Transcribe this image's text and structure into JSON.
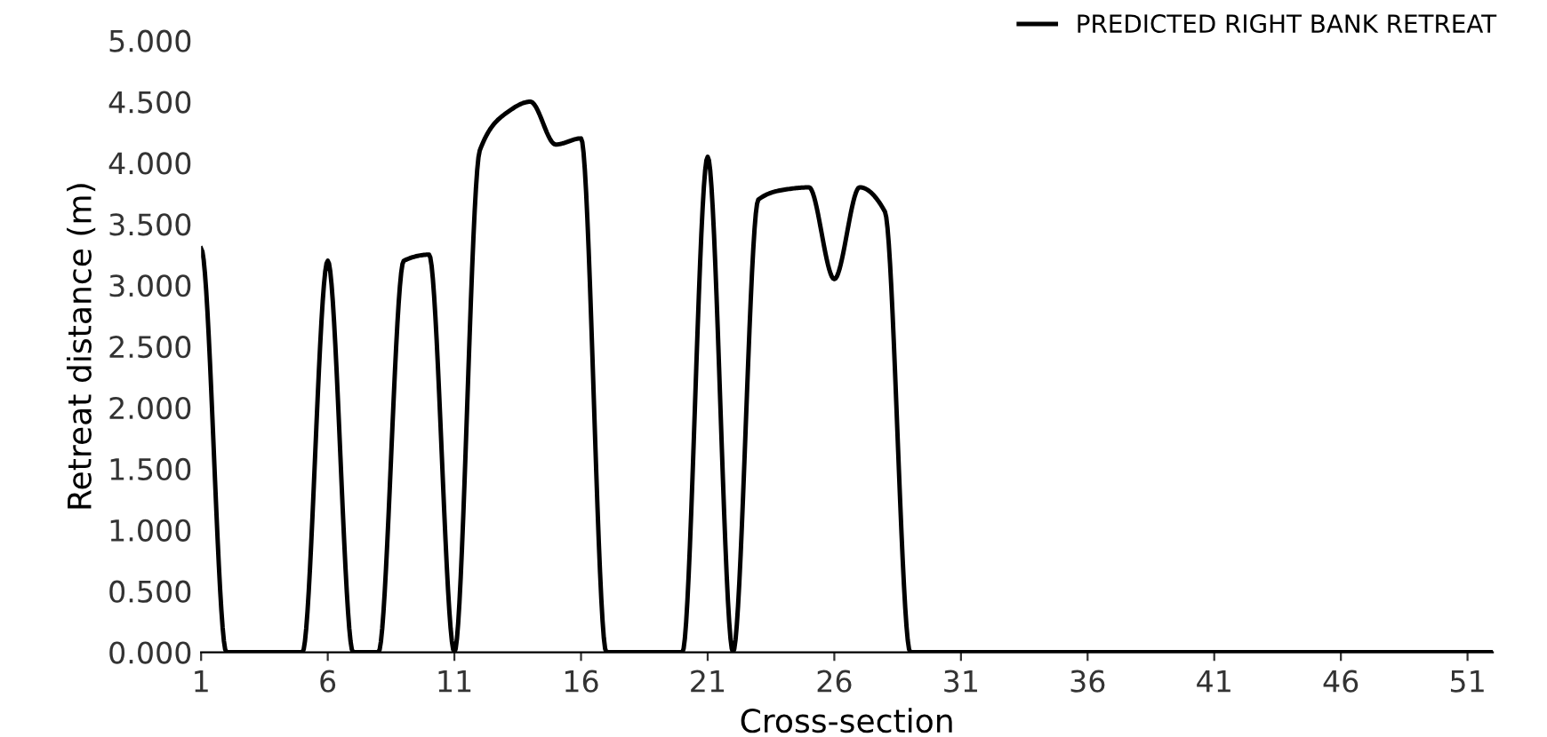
{
  "chart_data": {
    "type": "line",
    "xlabel": "Cross-section",
    "ylabel": "Retreat distance (m)",
    "x": [
      1,
      2,
      3,
      4,
      5,
      6,
      7,
      8,
      9,
      10,
      11,
      12,
      13,
      14,
      15,
      16,
      17,
      18,
      19,
      20,
      21,
      22,
      23,
      24,
      25,
      26,
      27,
      28,
      29,
      30,
      31,
      32,
      33,
      34,
      35,
      36,
      37,
      38,
      39,
      40,
      41,
      42,
      43,
      44,
      45,
      46,
      47,
      48,
      49,
      50,
      51,
      52
    ],
    "series": [
      {
        "name": "PREDICTED RIGHT BANK RETREAT",
        "color": "#000000",
        "values": [
          3.3,
          0,
          0,
          0,
          0,
          3.2,
          0,
          0,
          3.2,
          3.25,
          0,
          4.1,
          4.4,
          4.5,
          4.15,
          4.2,
          0,
          0,
          0,
          0,
          4.05,
          0,
          3.7,
          3.78,
          3.8,
          3.05,
          3.8,
          3.6,
          0,
          0,
          0,
          0,
          0,
          0,
          0,
          0,
          0,
          0,
          0,
          0,
          0,
          0,
          0,
          0,
          0,
          0,
          0,
          0,
          0,
          0,
          0,
          0
        ]
      }
    ],
    "xlim": [
      1,
      52
    ],
    "xticks": [
      1,
      6,
      11,
      16,
      21,
      26,
      31,
      36,
      41,
      46,
      51
    ],
    "ylim": [
      0,
      5
    ],
    "yticks": [
      {
        "value": 0,
        "label": "0.000"
      },
      {
        "value": 0.5,
        "label": "0.500"
      },
      {
        "value": 1,
        "label": "1.000"
      },
      {
        "value": 1.5,
        "label": "1.500"
      },
      {
        "value": 2,
        "label": "2.000"
      },
      {
        "value": 2.5,
        "label": "2.500"
      },
      {
        "value": 3,
        "label": "3.000"
      },
      {
        "value": 3.5,
        "label": "3.500"
      },
      {
        "value": 4,
        "label": "4.000"
      },
      {
        "value": 4.5,
        "label": "4.500"
      },
      {
        "value": 5,
        "label": "5.000"
      }
    ],
    "grid": false,
    "legend": "top right",
    "marker": "none",
    "line_style": "solid"
  }
}
